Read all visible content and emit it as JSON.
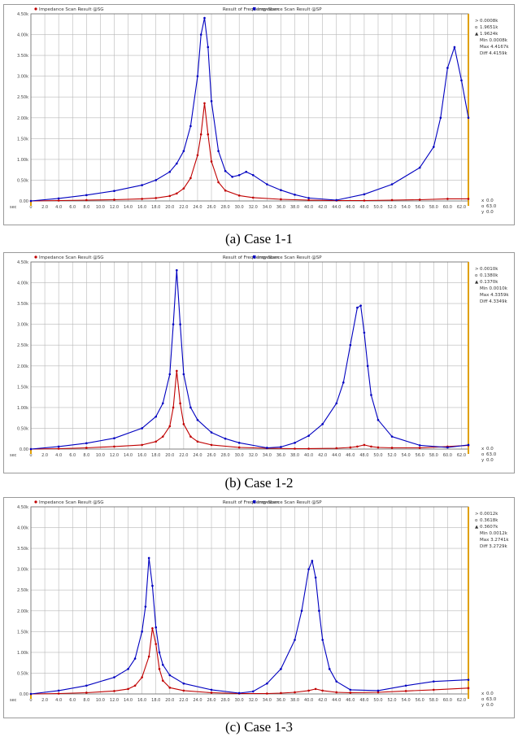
{
  "panels": [
    {
      "title": "Result of Frequency Scan",
      "legend": [
        "Impedance Scan Result @SG",
        "Impedance Scan Result @SP"
      ],
      "info": [
        "0.0008k",
        "1.9651k",
        "1.9624k",
        "Min 0.0008k",
        "Max 4.4167k",
        "Diff 4.4159k"
      ],
      "cursor": [
        "0.0",
        "63.0",
        "0.0"
      ],
      "caption": "(a)  Case  1-1"
    },
    {
      "title": "Result of Frequency Scan",
      "legend": [
        "Impedance Scan Result @SG",
        "Impedance Scan Result @SP"
      ],
      "info": [
        "0.0010k",
        "0.1380k",
        "0.1370k",
        "Min 0.0010k",
        "Max 4.3359k",
        "Diff 4.3349k"
      ],
      "cursor": [
        "0.0",
        "63.0",
        "0.0"
      ],
      "caption": "(b)  Case  1-2"
    },
    {
      "title": "Result of Frequency Scan",
      "legend": [
        "Impedance Scan Result @SG",
        "Impedance Scan Result @SP"
      ],
      "info": [
        "0.0012k",
        "0.3618k",
        "0.3607k",
        "Min 0.0012k",
        "Max 3.2741k",
        "Diff 3.2729k"
      ],
      "cursor": [
        "0.0",
        "63.0",
        "0.0"
      ],
      "caption": "(c)  Case  1-3"
    }
  ],
  "chart_data": [
    {
      "type": "line",
      "title": "Result of Frequency Scan",
      "xlim": [
        0,
        63
      ],
      "ylim": [
        0,
        4.5
      ],
      "xticks": [
        "0",
        "2.0",
        "4.0",
        "6.0",
        "8.0",
        "10.0",
        "12.0",
        "14.0",
        "16.0",
        "18.0",
        "20.0",
        "22.0",
        "24.0",
        "26.0",
        "28.0",
        "30.0",
        "32.0",
        "34.0",
        "36.0",
        "38.0",
        "40.0",
        "42.0",
        "44.0",
        "46.0",
        "48.0",
        "50.0",
        "52.0",
        "54.0",
        "56.0",
        "58.0",
        "60.0",
        "62.0"
      ],
      "yticks": [
        "0.00",
        "0.50k",
        "1.00k",
        "1.50k",
        "2.00k",
        "2.50k",
        "3.00k",
        "3.50k",
        "4.00k",
        "4.50k"
      ],
      "x_unit": "sec",
      "grid": true,
      "series": [
        {
          "name": "Impedance Scan Result @SG",
          "color": "#c00000",
          "x": [
            0,
            4,
            8,
            12,
            16,
            18,
            20,
            21,
            22,
            23,
            24,
            24.5,
            25,
            25.5,
            26,
            27,
            28,
            30,
            32,
            36,
            40,
            44,
            48,
            52,
            56,
            60,
            63
          ],
          "y": [
            0.0,
            0.01,
            0.02,
            0.03,
            0.05,
            0.07,
            0.12,
            0.18,
            0.3,
            0.55,
            1.1,
            1.6,
            2.35,
            1.6,
            0.95,
            0.45,
            0.25,
            0.13,
            0.08,
            0.04,
            0.02,
            0.01,
            0.01,
            0.02,
            0.03,
            0.05,
            0.05
          ]
        },
        {
          "name": "Impedance Scan Result @SP",
          "color": "#0000c0",
          "x": [
            0,
            4,
            8,
            12,
            16,
            18,
            20,
            21,
            22,
            23,
            24,
            24.5,
            25,
            25.5,
            26,
            27,
            28,
            29,
            30,
            31,
            32,
            34,
            36,
            38,
            40,
            44,
            48,
            52,
            56,
            58,
            59,
            60,
            61,
            62,
            63
          ],
          "y": [
            0.0,
            0.06,
            0.14,
            0.24,
            0.38,
            0.5,
            0.7,
            0.9,
            1.2,
            1.8,
            3.0,
            4.0,
            4.4,
            3.7,
            2.4,
            1.2,
            0.72,
            0.58,
            0.62,
            0.7,
            0.62,
            0.4,
            0.26,
            0.15,
            0.07,
            0.02,
            0.16,
            0.4,
            0.8,
            1.3,
            2.0,
            3.2,
            3.7,
            2.9,
            2.0
          ]
        }
      ]
    },
    {
      "type": "line",
      "title": "Result of Frequency Scan",
      "xlim": [
        0,
        63
      ],
      "ylim": [
        0,
        4.5
      ],
      "xticks": [
        "0",
        "2.0",
        "4.0",
        "6.0",
        "8.0",
        "10.0",
        "12.0",
        "14.0",
        "16.0",
        "18.0",
        "20.0",
        "22.0",
        "24.0",
        "26.0",
        "28.0",
        "30.0",
        "32.0",
        "34.0",
        "36.0",
        "38.0",
        "40.0",
        "42.0",
        "44.0",
        "46.0",
        "48.0",
        "50.0",
        "52.0",
        "54.0",
        "56.0",
        "58.0",
        "60.0",
        "62.0"
      ],
      "yticks": [
        "0.00",
        "0.50k",
        "1.00k",
        "1.50k",
        "2.00k",
        "2.50k",
        "3.00k",
        "3.50k",
        "4.00k",
        "4.50k"
      ],
      "x_unit": "sec",
      "grid": true,
      "series": [
        {
          "name": "Impedance Scan Result @SG",
          "color": "#c00000",
          "x": [
            0,
            4,
            8,
            12,
            16,
            18,
            19,
            20,
            20.5,
            21,
            21.5,
            22,
            23,
            24,
            26,
            30,
            34,
            38,
            40,
            44,
            46,
            47,
            48,
            49,
            50,
            52,
            56,
            60,
            63
          ],
          "y": [
            0.0,
            0.01,
            0.03,
            0.06,
            0.1,
            0.18,
            0.3,
            0.55,
            1.0,
            1.88,
            1.1,
            0.6,
            0.3,
            0.18,
            0.1,
            0.04,
            0.02,
            0.01,
            0.01,
            0.02,
            0.04,
            0.06,
            0.1,
            0.06,
            0.04,
            0.03,
            0.03,
            0.06,
            0.09
          ]
        },
        {
          "name": "Impedance Scan Result @SP",
          "color": "#0000c0",
          "x": [
            0,
            4,
            8,
            12,
            16,
            18,
            19,
            20,
            20.5,
            21,
            21.5,
            22,
            23,
            24,
            26,
            28,
            30,
            34,
            36,
            38,
            40,
            42,
            44,
            45,
            46,
            47,
            47.5,
            48,
            48.5,
            49,
            50,
            52,
            56,
            60,
            63
          ],
          "y": [
            0.0,
            0.06,
            0.14,
            0.26,
            0.5,
            0.78,
            1.1,
            1.8,
            3.0,
            4.3,
            3.0,
            1.8,
            1.0,
            0.7,
            0.4,
            0.25,
            0.15,
            0.03,
            0.05,
            0.15,
            0.32,
            0.6,
            1.1,
            1.6,
            2.5,
            3.4,
            3.45,
            2.8,
            2.0,
            1.3,
            0.7,
            0.3,
            0.09,
            0.04,
            0.1
          ]
        }
      ]
    },
    {
      "type": "line",
      "title": "Result of Frequency Scan",
      "xlim": [
        0,
        63
      ],
      "ylim": [
        0,
        4.5
      ],
      "xticks": [
        "0",
        "2.0",
        "4.0",
        "6.0",
        "8.0",
        "10.0",
        "12.0",
        "14.0",
        "16.0",
        "18.0",
        "20.0",
        "22.0",
        "24.0",
        "26.0",
        "28.0",
        "30.0",
        "32.0",
        "34.0",
        "36.0",
        "38.0",
        "40.0",
        "42.0",
        "44.0",
        "46.0",
        "48.0",
        "50.0",
        "52.0",
        "54.0",
        "56.0",
        "58.0",
        "60.0",
        "62.0"
      ],
      "yticks": [
        "0.00",
        "0.50k",
        "1.00k",
        "1.50k",
        "2.00k",
        "2.50k",
        "3.00k",
        "3.50k",
        "4.00k",
        "4.50k"
      ],
      "x_unit": "sec",
      "grid": true,
      "series": [
        {
          "name": "Impedance Scan Result @SG",
          "color": "#c00000",
          "x": [
            0,
            4,
            8,
            12,
            14,
            15,
            16,
            17,
            17.5,
            18,
            18.5,
            19,
            20,
            22,
            26,
            30,
            34,
            36,
            38,
            40,
            41,
            42,
            44,
            46,
            50,
            54,
            58,
            63
          ],
          "y": [
            0.0,
            0.01,
            0.03,
            0.07,
            0.12,
            0.2,
            0.4,
            0.9,
            1.58,
            1.2,
            0.6,
            0.32,
            0.15,
            0.08,
            0.03,
            0.01,
            0.01,
            0.02,
            0.04,
            0.08,
            0.12,
            0.08,
            0.04,
            0.03,
            0.04,
            0.07,
            0.1,
            0.14
          ]
        },
        {
          "name": "Impedance Scan Result @SP",
          "color": "#0000c0",
          "x": [
            0,
            4,
            8,
            12,
            14,
            15,
            16,
            16.5,
            17,
            17.5,
            18,
            18.5,
            19,
            20,
            22,
            26,
            30,
            32,
            34,
            36,
            38,
            39,
            40,
            40.5,
            41,
            41.5,
            42,
            43,
            44,
            46,
            50,
            54,
            58,
            63
          ],
          "y": [
            0.0,
            0.08,
            0.2,
            0.4,
            0.6,
            0.85,
            1.5,
            2.1,
            3.27,
            2.6,
            1.6,
            1.0,
            0.7,
            0.45,
            0.25,
            0.1,
            0.02,
            0.06,
            0.25,
            0.6,
            1.3,
            2.0,
            3.0,
            3.2,
            2.8,
            2.0,
            1.3,
            0.6,
            0.3,
            0.1,
            0.08,
            0.2,
            0.3,
            0.34
          ]
        }
      ]
    }
  ]
}
